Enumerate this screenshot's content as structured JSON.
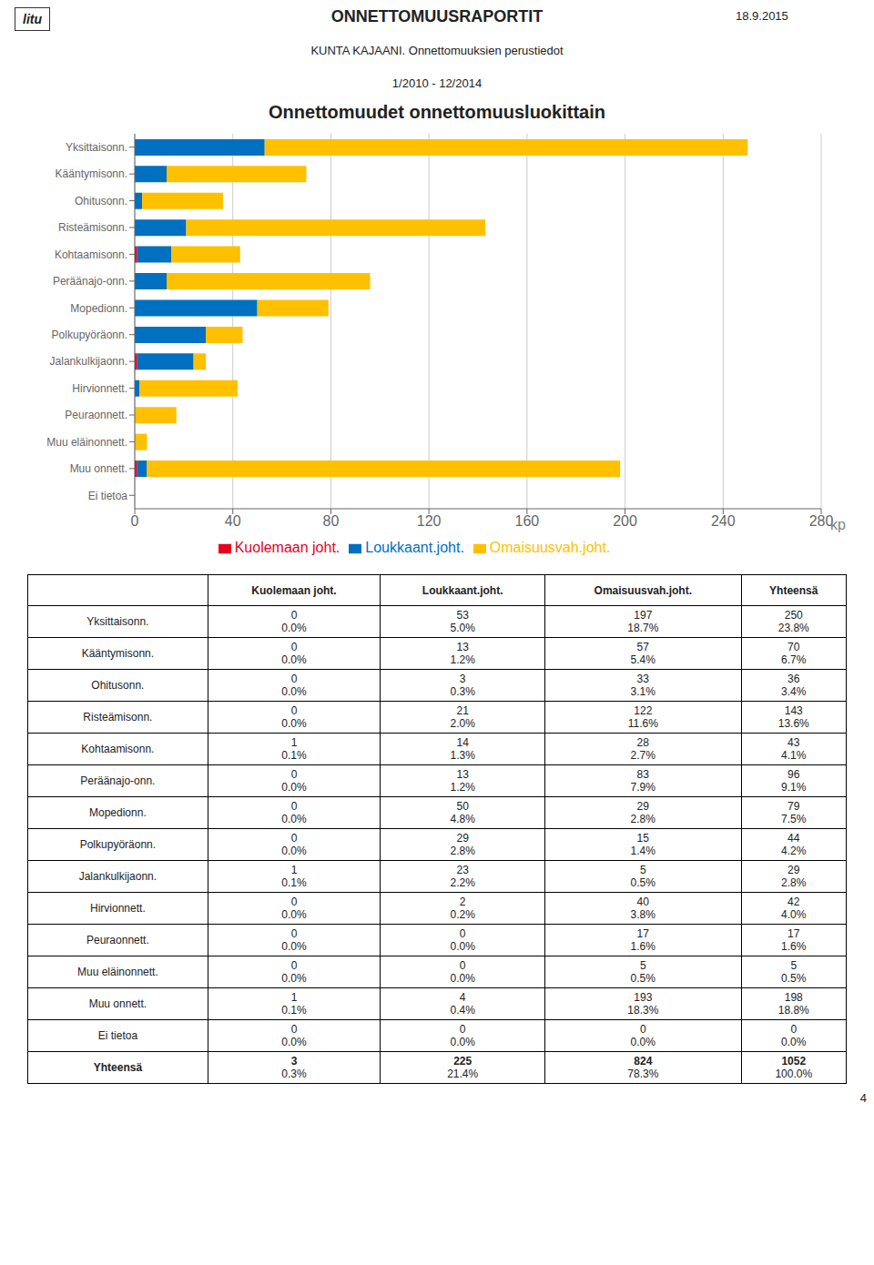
{
  "chart_data": {
    "type": "bar",
    "orientation": "horizontal",
    "stacked": true,
    "title": "Onnettomuudet onnettomuusluokittain",
    "xlabel": "kp",
    "annotations": [
      "litu",
      "ONNETTOMUUSRAPORTIT",
      "KUNTA KAJAANI. Onnettomuuksien perustiedot",
      "18.9.2015",
      "1/2010 - 12/2014",
      "4"
    ],
    "categories": [
      "Yksittaisonn.",
      "Kääntymisonn.",
      "Ohitusonn.",
      "Risteämisonn.",
      "Kohtaamisonn.",
      "Peräänajo-onn.",
      "Mopedionn.",
      "Polkupyöräonn.",
      "Jalankulkijaonn.",
      "Hirvionnett.",
      "Peuraonnett.",
      "Muu eläinonnett.",
      "Muu onnett.",
      "Ei tietoa"
    ],
    "series": [
      {
        "name": "Kuolemaan joht.",
        "color": "#e8001c",
        "values": [
          0,
          0,
          0,
          0,
          1,
          0,
          0,
          0,
          1,
          0,
          0,
          0,
          1,
          0
        ]
      },
      {
        "name": "Loukkaant.joht.",
        "color": "#0070c0",
        "values": [
          53,
          13,
          3,
          21,
          14,
          13,
          50,
          29,
          23,
          2,
          0,
          0,
          4,
          0
        ]
      },
      {
        "name": "Omaisuusvah.joht.",
        "color": "#ffc000",
        "values": [
          197,
          57,
          33,
          122,
          28,
          83,
          29,
          15,
          5,
          40,
          17,
          5,
          193,
          0
        ]
      }
    ],
    "xlim": [
      0,
      280
    ],
    "xticks": [
      0,
      40,
      80,
      120,
      160,
      200,
      240,
      280
    ],
    "grid": true,
    "legend": "bottom",
    "table": {
      "columns": [
        "Kuolemaan joht.",
        "Loukkaant.joht.",
        "Omaisuusvah.joht.",
        "Yhteensä"
      ],
      "rows": [
        {
          "label": "Yksittaisonn.",
          "values": [
            0,
            53,
            197,
            250
          ],
          "percent_labels": [
            "0.0%",
            "5.0%",
            "18.7%",
            "23.8%"
          ]
        },
        {
          "label": "Kääntymisonn.",
          "values": [
            0,
            13,
            57,
            70
          ],
          "percent_labels": [
            "0.0%",
            "1.2%",
            "5.4%",
            "6.7%"
          ]
        },
        {
          "label": "Ohitusonn.",
          "values": [
            0,
            3,
            33,
            36
          ],
          "percent_labels": [
            "0.0%",
            "0.3%",
            "3.1%",
            "3.4%"
          ]
        },
        {
          "label": "Risteämisonn.",
          "values": [
            0,
            21,
            122,
            143
          ],
          "percent_labels": [
            "0.0%",
            "2.0%",
            "11.6%",
            "13.6%"
          ]
        },
        {
          "label": "Kohtaamisonn.",
          "values": [
            1,
            14,
            28,
            43
          ],
          "percent_labels": [
            "0.1%",
            "1.3%",
            "2.7%",
            "4.1%"
          ]
        },
        {
          "label": "Peräänajo-onn.",
          "values": [
            0,
            13,
            83,
            96
          ],
          "percent_labels": [
            "0.0%",
            "1.2%",
            "7.9%",
            "9.1%"
          ]
        },
        {
          "label": "Mopedionn.",
          "values": [
            0,
            50,
            29,
            79
          ],
          "percent_labels": [
            "0.0%",
            "4.8%",
            "2.8%",
            "7.5%"
          ]
        },
        {
          "label": "Polkupyöräonn.",
          "values": [
            0,
            29,
            15,
            44
          ],
          "percent_labels": [
            "0.0%",
            "2.8%",
            "1.4%",
            "4.2%"
          ]
        },
        {
          "label": "Jalankulkijaonn.",
          "values": [
            1,
            23,
            5,
            29
          ],
          "percent_labels": [
            "0.1%",
            "2.2%",
            "0.5%",
            "2.8%"
          ]
        },
        {
          "label": "Hirvionnett.",
          "values": [
            0,
            2,
            40,
            42
          ],
          "percent_labels": [
            "0.0%",
            "0.2%",
            "3.8%",
            "4.0%"
          ]
        },
        {
          "label": "Peuraonnett.",
          "values": [
            0,
            0,
            17,
            17
          ],
          "percent_labels": [
            "0.0%",
            "0.0%",
            "1.6%",
            "1.6%"
          ]
        },
        {
          "label": "Muu eläinonnett.",
          "values": [
            0,
            0,
            5,
            5
          ],
          "percent_labels": [
            "0.0%",
            "0.0%",
            "0.5%",
            "0.5%"
          ]
        },
        {
          "label": "Muu onnett.",
          "values": [
            1,
            4,
            193,
            198
          ],
          "percent_labels": [
            "0.1%",
            "0.4%",
            "18.3%",
            "18.8%"
          ]
        },
        {
          "label": "Ei tietoa",
          "values": [
            0,
            0,
            0,
            0
          ],
          "percent_labels": [
            "0.0%",
            "0.0%",
            "0.0%",
            "0.0%"
          ]
        },
        {
          "label": "Yhteensä",
          "values": [
            3,
            225,
            824,
            1052
          ],
          "percent_labels": [
            "0.3%",
            "21.4%",
            "78.3%",
            "100.0%"
          ]
        }
      ]
    }
  }
}
